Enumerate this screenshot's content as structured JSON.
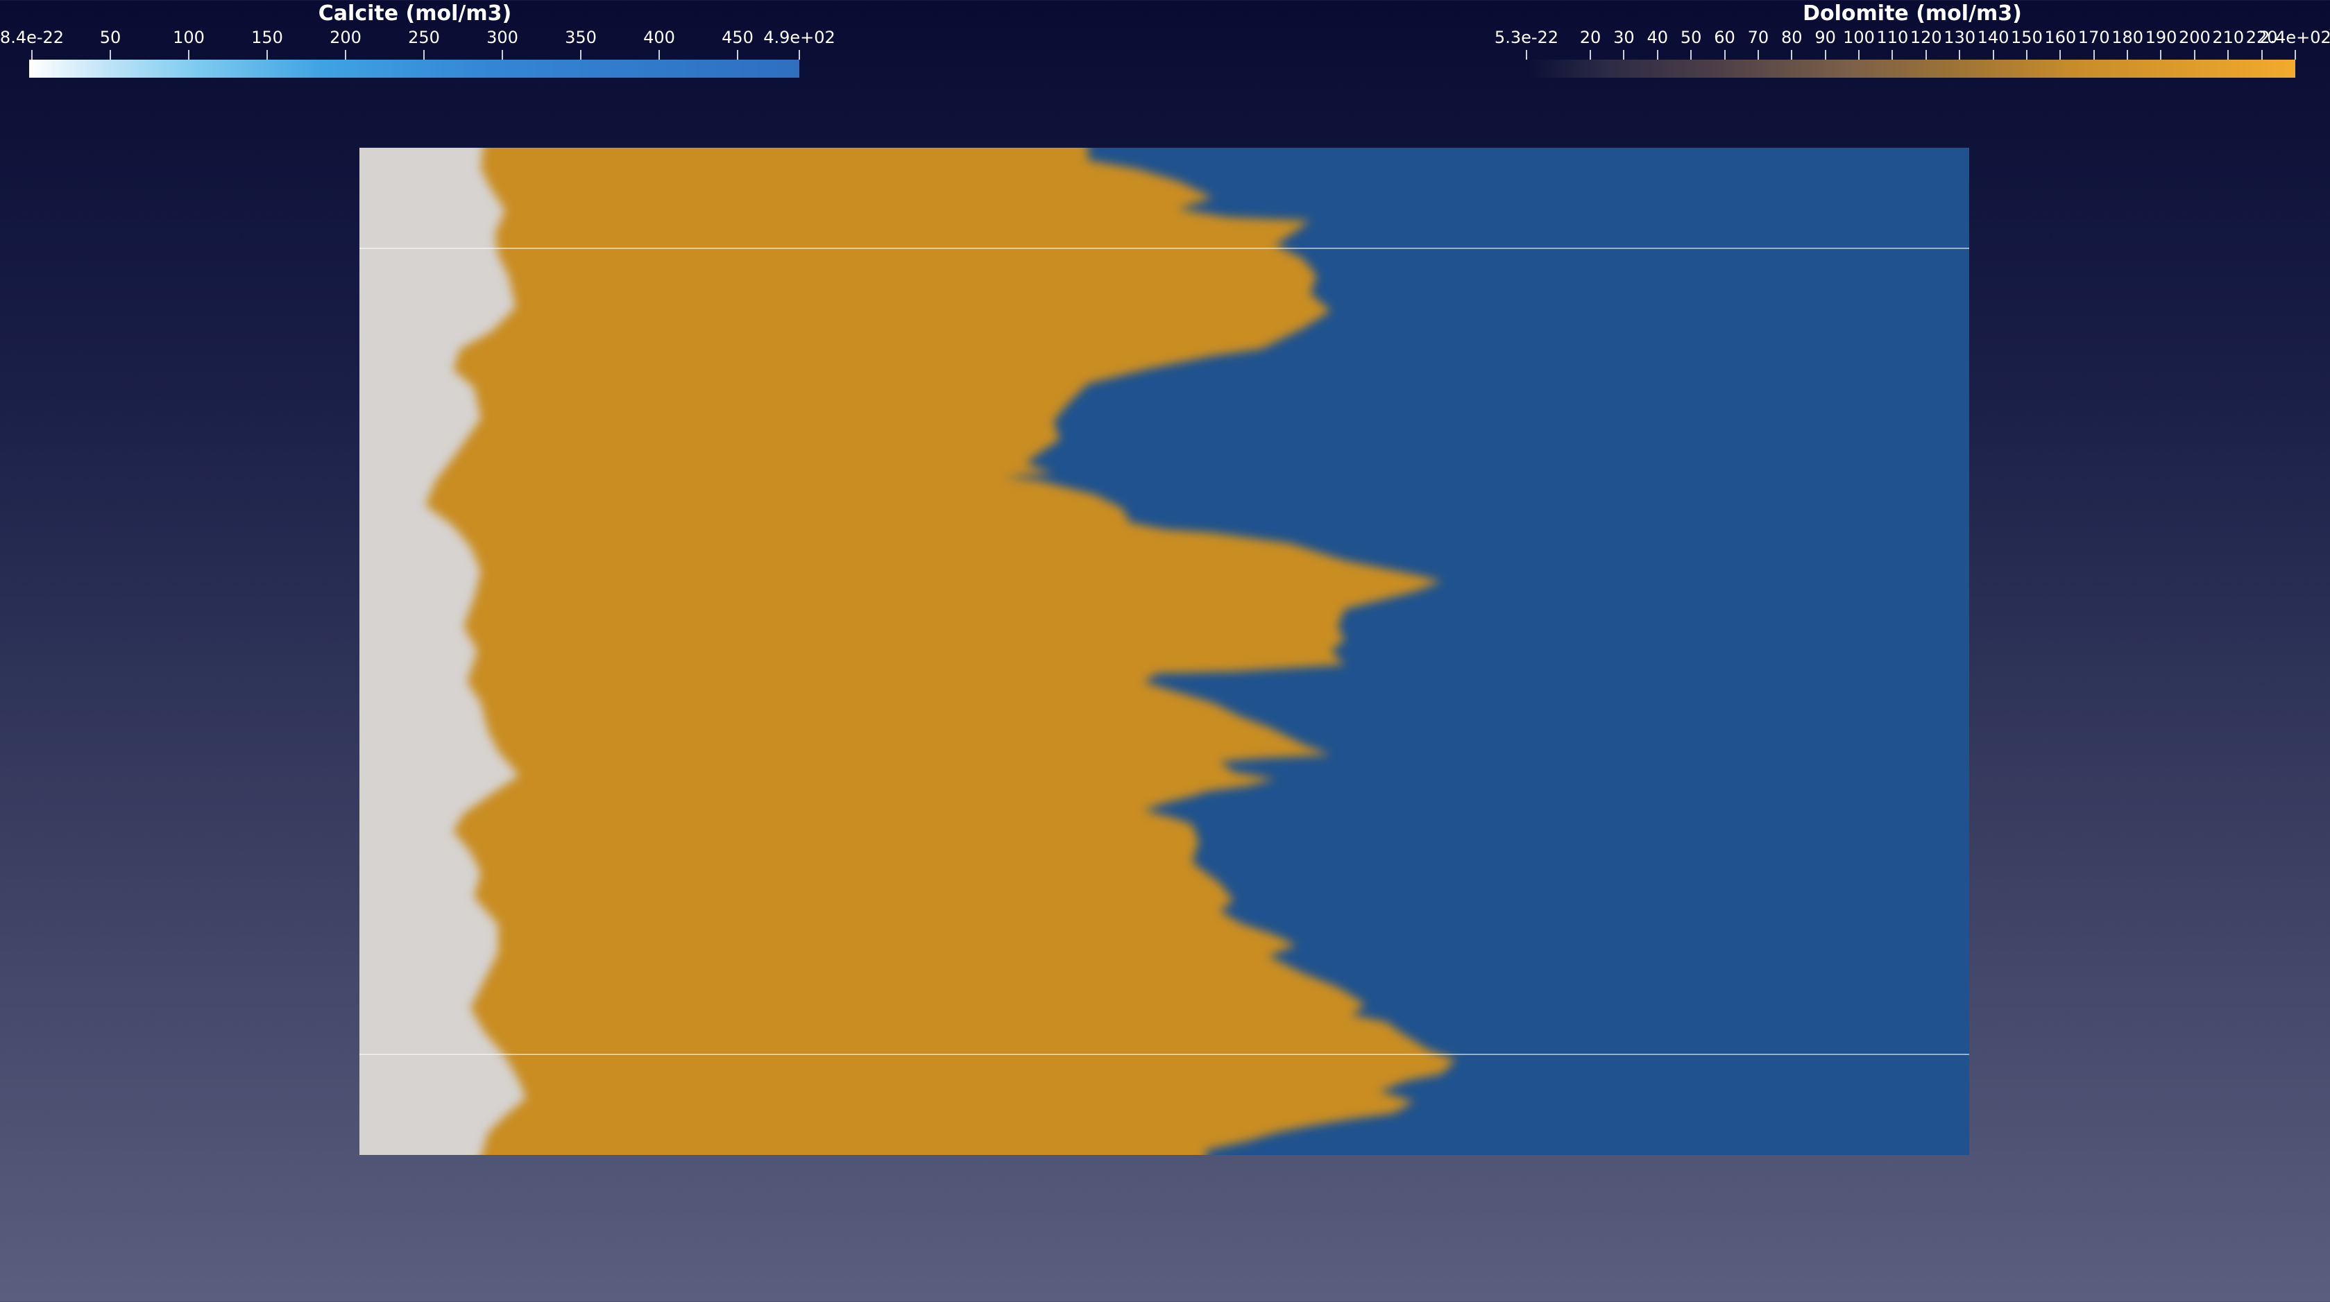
{
  "scalar_bars": [
    {
      "id": "calcite",
      "title": "Calcite (mol/m3)",
      "ticks": [
        "8.4e-22",
        "50",
        "100",
        "150",
        "200",
        "250",
        "300",
        "350",
        "400",
        "450",
        "4.9e+02"
      ],
      "range": [
        8.4e-22,
        490
      ],
      "colors": [
        "#ffffff",
        "#7ccaf0",
        "#3386d4",
        "#2f6fc0"
      ]
    },
    {
      "id": "dolomite",
      "title": "Dolomite (mol/m3)",
      "ticks": [
        "5.3e-22",
        "20",
        "30",
        "40",
        "50",
        "60",
        "70",
        "80",
        "90",
        "100",
        "110",
        "120",
        "130",
        "140",
        "150",
        "160",
        "170",
        "180",
        "190",
        "200",
        "210",
        "220",
        "2.4e+02"
      ],
      "range": [
        5.3e-22,
        240
      ],
      "colors": [
        "#1c1d48",
        "#7b6049",
        "#c98d2a",
        "#f3aa2c"
      ]
    }
  ],
  "field_colors": {
    "background_top": "#080c32",
    "background_bottom": "#5a5f7e",
    "depleted_zone": "#d6d3d0",
    "dolomite_zone": "#c98d22",
    "calcite_zone": "#1f528e",
    "slice_line": "#ffffff"
  }
}
